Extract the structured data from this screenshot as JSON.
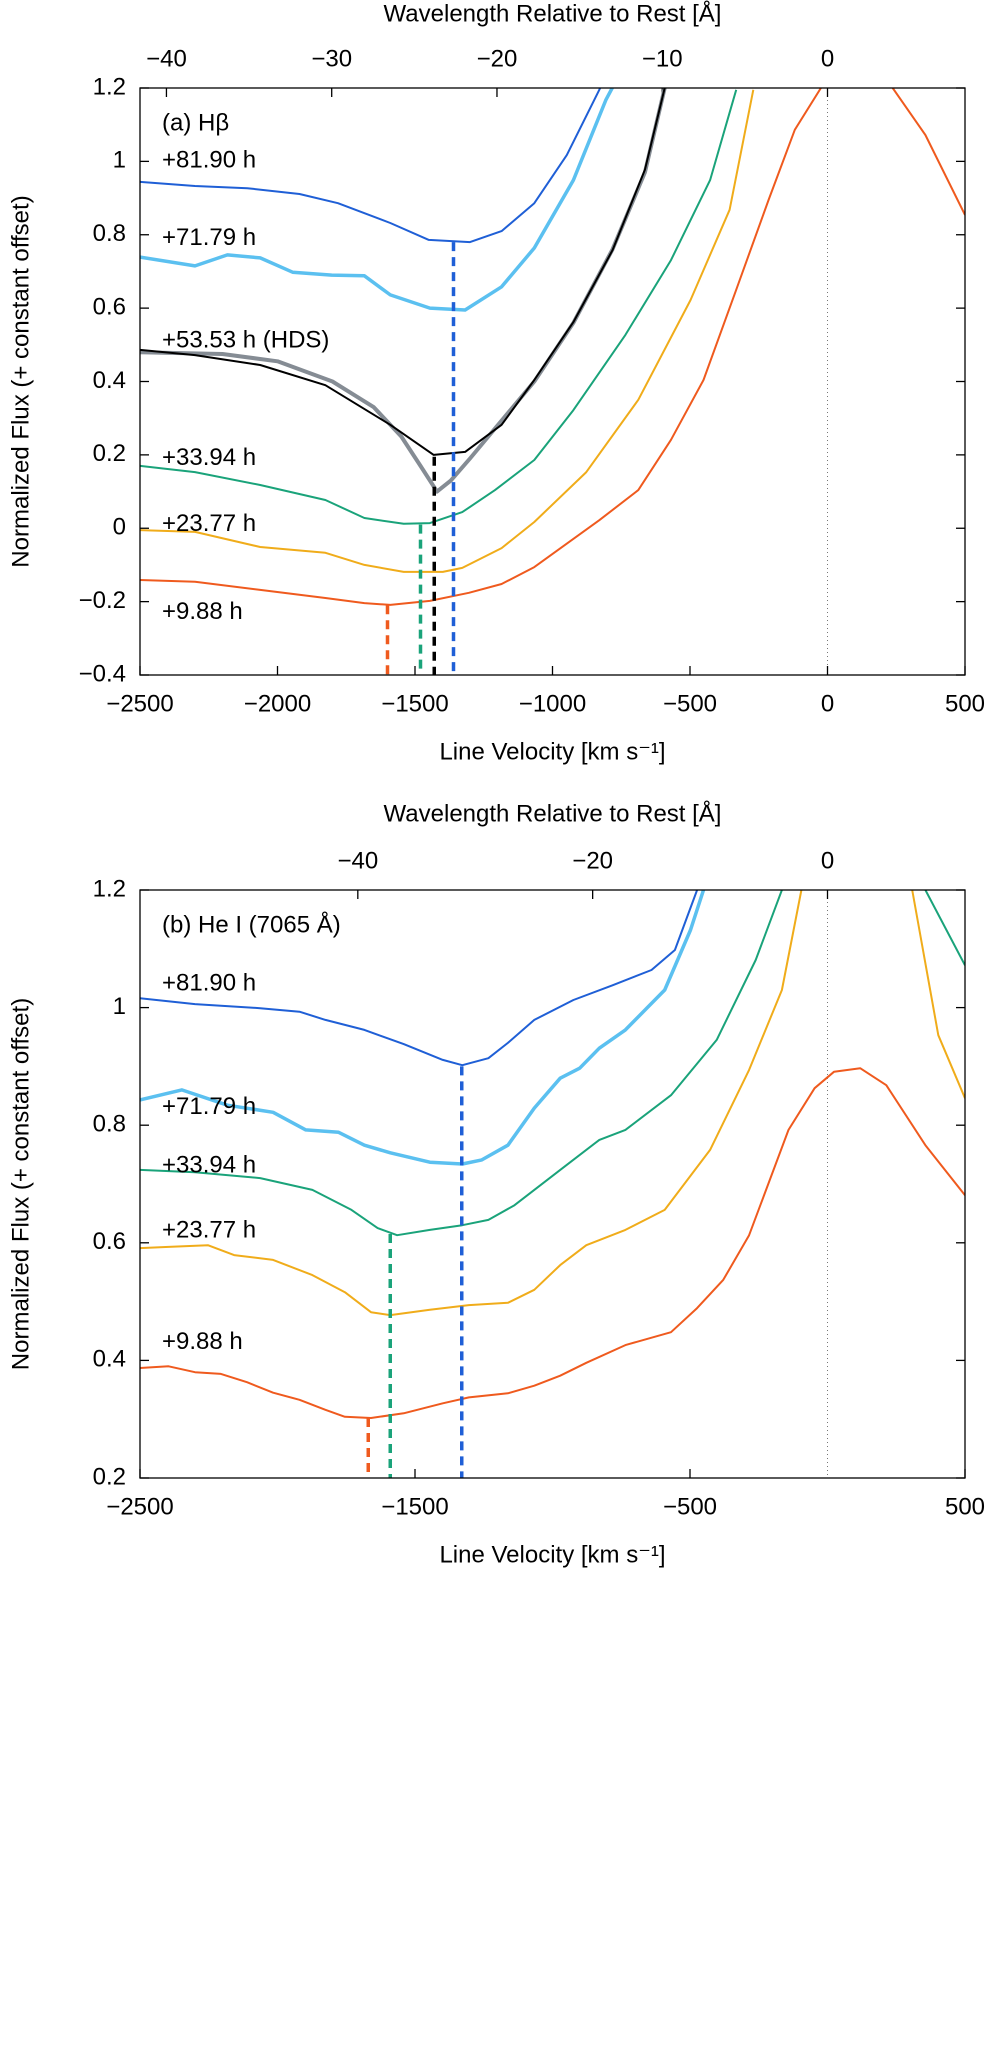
{
  "chart_data": [
    {
      "type": "line",
      "annotation": "(a) Hβ",
      "x_label": "Line Velocity [km s⁻¹]",
      "x2_label": "Wavelength Relative to Rest [Å]",
      "y_label": "Normalized Flux (+ constant offset)",
      "xlim": [
        -2500,
        500
      ],
      "xticks": [
        {
          "value": -2500,
          "label": "−2500"
        },
        {
          "value": -2000,
          "label": "−2000"
        },
        {
          "value": -1500,
          "label": "−1500"
        },
        {
          "value": -1000,
          "label": "−1000"
        },
        {
          "value": -500,
          "label": "−500"
        },
        0,
        500
      ],
      "x2lim": [
        -41.6,
        8.32
      ],
      "x2ticks": [
        {
          "value": -40,
          "label": "−40"
        },
        {
          "value": -30,
          "label": "−30"
        },
        {
          "value": -20,
          "label": "−20"
        },
        {
          "value": -10,
          "label": "−10"
        },
        0
      ],
      "ylim": [
        -0.4,
        1.2
      ],
      "yticks": [
        {
          "value": -0.4,
          "label": "−0.4"
        },
        {
          "value": -0.2,
          "label": "−0.2"
        },
        0,
        0.2,
        0.4,
        0.6,
        0.8,
        1,
        1.2
      ],
      "series": [
        {
          "name": "+81.90 h",
          "color": "#1f5fd6",
          "linewidth": 2,
          "x": [
            -2500,
            -2300,
            -2110,
            -1920,
            -1780,
            -1590,
            -1450,
            -1300,
            -1185,
            -1066,
            -948,
            -830,
            -806
          ],
          "values": [
            0.944,
            0.933,
            0.927,
            0.911,
            0.886,
            0.832,
            0.786,
            0.78,
            0.81,
            0.886,
            1.017,
            1.195,
            1.235
          ]
        },
        {
          "name": "+71.79 h",
          "color": "#5bc0f0",
          "linewidth": 3.5,
          "x": [
            -2500,
            -2300,
            -2182,
            -2063,
            -1945,
            -1803,
            -1684,
            -1590,
            -1446,
            -1318,
            -1185,
            -1066,
            -924,
            -806,
            -758
          ],
          "values": [
            0.739,
            0.715,
            0.745,
            0.737,
            0.698,
            0.69,
            0.688,
            0.636,
            0.6,
            0.595,
            0.658,
            0.764,
            0.949,
            1.167,
            1.235
          ]
        },
        {
          "color": "#858c94",
          "linewidth": 4,
          "x": [
            -2500,
            -2200,
            -2000,
            -1800,
            -1650,
            -1550,
            -1480,
            -1420,
            -1370,
            -1300,
            -1200,
            -1066,
            -924,
            -782,
            -664,
            -592
          ],
          "values": [
            0.48,
            0.475,
            0.455,
            0.4,
            0.33,
            0.25,
            0.17,
            0.1,
            0.13,
            0.19,
            0.28,
            0.4,
            0.56,
            0.76,
            0.97,
            1.2
          ]
        },
        {
          "name": "+53.53 h (HDS)",
          "color": "#000000",
          "linewidth": 2,
          "x": [
            -2500,
            -2300,
            -2063,
            -1826,
            -1590,
            -1432,
            -1318,
            -1185,
            -1066,
            -924,
            -782,
            -664,
            -592
          ],
          "values": [
            0.486,
            0.472,
            0.445,
            0.39,
            0.282,
            0.2,
            0.208,
            0.282,
            0.404,
            0.562,
            0.758,
            0.977,
            1.2
          ]
        },
        {
          "name": "+33.94 h",
          "color": "#1aa37a",
          "linewidth": 2,
          "x": [
            -2500,
            -2300,
            -2063,
            -1826,
            -1684,
            -1541,
            -1446,
            -1328,
            -1209,
            -1066,
            -924,
            -735,
            -569,
            -427,
            -332
          ],
          "values": [
            0.17,
            0.153,
            0.118,
            0.077,
            0.028,
            0.012,
            0.014,
            0.044,
            0.104,
            0.186,
            0.322,
            0.527,
            0.731,
            0.949,
            1.195
          ]
        },
        {
          "name": "+23.77 h",
          "color": "#f0ac1a",
          "linewidth": 2,
          "x": [
            -2500,
            -2300,
            -2063,
            -1826,
            -1684,
            -1541,
            -1399,
            -1328,
            -1185,
            -1066,
            -877,
            -688,
            -498,
            -356,
            -270
          ],
          "values": [
            -0.005,
            -0.01,
            -0.051,
            -0.067,
            -0.1,
            -0.119,
            -0.119,
            -0.108,
            -0.054,
            0.017,
            0.153,
            0.35,
            0.622,
            0.868,
            1.195
          ]
        },
        {
          "name": "+9.88 h",
          "color": "#ef5a1e",
          "linewidth": 2,
          "x": [
            -2500,
            -2300,
            -2063,
            -1826,
            -1684,
            -1590,
            -1446,
            -1304,
            -1185,
            -1066,
            -830,
            -688,
            -569,
            -451,
            -332,
            -214,
            -119,
            -24,
            null,
            237,
            356,
            500
          ],
          "values": [
            -0.141,
            -0.146,
            -0.168,
            -0.19,
            -0.204,
            -0.209,
            -0.198,
            -0.176,
            -0.152,
            -0.106,
            0.022,
            0.104,
            0.241,
            0.404,
            0.65,
            0.895,
            1.086,
            1.2,
            null,
            1.2,
            1.072,
            0.854
          ]
        }
      ],
      "markers": [
        {
          "x": -1600,
          "y": -0.21,
          "color": "#ef5a1e"
        },
        {
          "x": -1480,
          "y": 0.01,
          "color": "#1aa37a"
        },
        {
          "x": -1430,
          "y": 0.195,
          "color": "#000000"
        },
        {
          "x": -1360,
          "y": 0.78,
          "color": "#1f5fd6"
        }
      ]
    },
    {
      "type": "line",
      "annotation": "(b) He I (7065 Å)",
      "x_label": "Line Velocity [km s⁻¹]",
      "x2_label": "Wavelength Relative to Rest [Å]",
      "y_label": "Normalized Flux (+ constant offset)",
      "xlim": [
        -2500,
        500
      ],
      "xticks": [
        {
          "value": -2500,
          "label": "−2500"
        },
        {
          "value": -1500,
          "label": "−1500"
        },
        {
          "value": -500,
          "label": "−500"
        },
        500
      ],
      "x2lim": [
        -58.55,
        11.71
      ],
      "x2ticks": [
        {
          "value": -40,
          "label": "−40"
        },
        {
          "value": -20,
          "label": "−20"
        },
        0
      ],
      "ylim": [
        0.2,
        1.2
      ],
      "yticks": [
        0.2,
        0.4,
        0.6,
        0.8,
        1,
        1.2
      ],
      "series": [
        {
          "name": "+81.90 h",
          "color": "#1f5fd6",
          "linewidth": 2,
          "x": [
            -2500,
            -2300,
            -2063,
            -1920,
            -1826,
            -1684,
            -1541,
            -1399,
            -1328,
            -1233,
            -1162,
            -1066,
            -924,
            -782,
            -640,
            -555,
            -474
          ],
          "values": [
            1.016,
            1.006,
            0.999,
            0.993,
            0.979,
            0.962,
            0.938,
            0.911,
            0.902,
            0.914,
            0.94,
            0.979,
            1.013,
            1.038,
            1.064,
            1.098,
            1.2
          ]
        },
        {
          "name": "+71.79 h",
          "color": "#5bc0f0",
          "linewidth": 3.5,
          "x": [
            -2500,
            -2348,
            -2182,
            -2016,
            -1897,
            -1778,
            -1684,
            -1590,
            -1446,
            -1328,
            -1257,
            -1162,
            -1066,
            -972,
            -901,
            -830,
            -735,
            -592,
            -498,
            -451
          ],
          "values": [
            0.843,
            0.86,
            0.834,
            0.822,
            0.792,
            0.788,
            0.766,
            0.753,
            0.737,
            0.734,
            0.741,
            0.766,
            0.829,
            0.88,
            0.897,
            0.931,
            0.962,
            1.03,
            1.132,
            1.2
          ]
        },
        {
          "name": "+33.94 h",
          "color": "#1aa37a",
          "linewidth": 2,
          "x": [
            -2500,
            -2300,
            -2063,
            -1873,
            -1731,
            -1636,
            -1565,
            -1446,
            -1328,
            -1233,
            -1138,
            -972,
            -830,
            -735,
            -569,
            -403,
            -261,
            -166,
            null,
            356,
            500
          ],
          "values": [
            0.724,
            0.72,
            0.71,
            0.69,
            0.656,
            0.625,
            0.613,
            0.622,
            0.63,
            0.639,
            0.664,
            0.724,
            0.775,
            0.792,
            0.851,
            0.945,
            1.081,
            1.2,
            null,
            1.2,
            1.072
          ]
        },
        {
          "name": "+23.77 h",
          "color": "#f0ac1a",
          "linewidth": 2,
          "x": [
            -2500,
            -2396,
            -2253,
            -2158,
            -2016,
            -1873,
            -1755,
            -1660,
            -1590,
            -1446,
            -1304,
            -1162,
            -1066,
            -972,
            -877,
            -735,
            -592,
            -427,
            -285,
            -166,
            -95,
            null,
            308,
            403,
            500
          ],
          "values": [
            0.591,
            0.593,
            0.596,
            0.579,
            0.571,
            0.545,
            0.516,
            0.482,
            0.477,
            0.486,
            0.494,
            0.498,
            0.52,
            0.562,
            0.596,
            0.622,
            0.656,
            0.758,
            0.894,
            1.03,
            1.2,
            null,
            1.2,
            0.953,
            0.846
          ]
        },
        {
          "name": "+9.88 h",
          "color": "#ef5a1e",
          "linewidth": 2,
          "x": [
            -2500,
            -2396,
            -2300,
            -2206,
            -2111,
            -2016,
            -1920,
            -1826,
            -1755,
            -1660,
            -1541,
            -1399,
            -1304,
            -1162,
            -1066,
            -972,
            -877,
            -735,
            -569,
            -474,
            -379,
            -285,
            -142,
            -47,
            24,
            119,
            214,
            356,
            500
          ],
          "values": [
            0.387,
            0.39,
            0.38,
            0.377,
            0.363,
            0.345,
            0.333,
            0.316,
            0.304,
            0.302,
            0.31,
            0.327,
            0.337,
            0.344,
            0.357,
            0.374,
            0.396,
            0.426,
            0.448,
            0.489,
            0.537,
            0.613,
            0.792,
            0.863,
            0.891,
            0.897,
            0.868,
            0.766,
            0.681
          ]
        }
      ],
      "markers": [
        {
          "x": -1670,
          "y": 0.302,
          "color": "#ef5a1e"
        },
        {
          "x": -1590,
          "y": 0.615,
          "color": "#1aa37a"
        },
        {
          "x": -1330,
          "y": 0.9,
          "color": "#1f5fd6"
        }
      ]
    }
  ]
}
